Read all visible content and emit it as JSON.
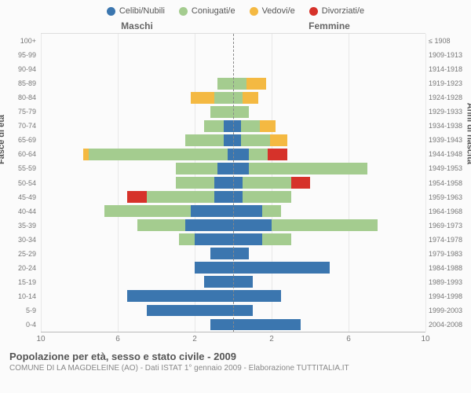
{
  "legend": [
    {
      "label": "Celibi/Nubili",
      "color": "#3b76af"
    },
    {
      "label": "Coniugati/e",
      "color": "#a4cc8f"
    },
    {
      "label": "Vedovi/e",
      "color": "#f4b942"
    },
    {
      "label": "Divorziati/e",
      "color": "#d6322a"
    }
  ],
  "gender_left": "Maschi",
  "gender_right": "Femmine",
  "y_title_left": "Fasce di età",
  "y_title_right": "Anni di nascita",
  "x_max": 10,
  "x_ticks_left": [
    10,
    6,
    2
  ],
  "x_ticks_right": [
    2,
    6,
    10
  ],
  "age_labels": [
    "100+",
    "95-99",
    "90-94",
    "85-89",
    "80-84",
    "75-79",
    "70-74",
    "65-69",
    "60-64",
    "55-59",
    "50-54",
    "45-49",
    "40-44",
    "35-39",
    "30-34",
    "25-29",
    "20-24",
    "15-19",
    "10-14",
    "5-9",
    "0-4"
  ],
  "birth_labels": [
    "≤ 1908",
    "1909-1913",
    "1914-1918",
    "1919-1923",
    "1924-1928",
    "1929-1933",
    "1934-1938",
    "1939-1943",
    "1944-1948",
    "1949-1953",
    "1954-1958",
    "1959-1963",
    "1964-1968",
    "1969-1973",
    "1974-1978",
    "1979-1983",
    "1984-1988",
    "1989-1993",
    "1994-1998",
    "1999-2003",
    "2004-2008"
  ],
  "rows": [
    {
      "m": [
        0,
        0,
        0,
        0
      ],
      "f": [
        0,
        0,
        0,
        0
      ]
    },
    {
      "m": [
        0,
        0,
        0,
        0
      ],
      "f": [
        0,
        0,
        0,
        0
      ]
    },
    {
      "m": [
        0,
        0,
        0,
        0
      ],
      "f": [
        0,
        0,
        0,
        0
      ]
    },
    {
      "m": [
        0,
        0.8,
        0,
        0
      ],
      "f": [
        0,
        0.7,
        1.0,
        0
      ]
    },
    {
      "m": [
        0,
        1.0,
        1.2,
        0
      ],
      "f": [
        0,
        0.5,
        0.8,
        0
      ]
    },
    {
      "m": [
        0,
        1.2,
        0,
        0
      ],
      "f": [
        0,
        0.8,
        0,
        0
      ]
    },
    {
      "m": [
        0.5,
        1.0,
        0,
        0
      ],
      "f": [
        0.4,
        1.0,
        0.8,
        0
      ]
    },
    {
      "m": [
        0.5,
        2.0,
        0,
        0
      ],
      "f": [
        0.4,
        1.5,
        0.9,
        0
      ]
    },
    {
      "m": [
        0.3,
        7.2,
        0.3,
        0
      ],
      "f": [
        0.8,
        1.0,
        0,
        1.0
      ]
    },
    {
      "m": [
        0.8,
        2.2,
        0,
        0
      ],
      "f": [
        0.8,
        6.2,
        0,
        0
      ]
    },
    {
      "m": [
        1.0,
        2.0,
        0,
        0
      ],
      "f": [
        0.5,
        2.5,
        0,
        1.0
      ]
    },
    {
      "m": [
        1.0,
        3.5,
        0,
        1.0
      ],
      "f": [
        0.5,
        2.5,
        0,
        0
      ]
    },
    {
      "m": [
        2.2,
        4.5,
        0,
        0
      ],
      "f": [
        1.5,
        1.0,
        0,
        0
      ]
    },
    {
      "m": [
        2.5,
        2.5,
        0,
        0
      ],
      "f": [
        2.0,
        5.5,
        0,
        0
      ]
    },
    {
      "m": [
        2.0,
        0.8,
        0,
        0
      ],
      "f": [
        1.5,
        1.5,
        0,
        0
      ]
    },
    {
      "m": [
        1.2,
        0,
        0,
        0
      ],
      "f": [
        0.8,
        0,
        0,
        0
      ]
    },
    {
      "m": [
        2.0,
        0,
        0,
        0
      ],
      "f": [
        5.0,
        0,
        0,
        0
      ]
    },
    {
      "m": [
        1.5,
        0,
        0,
        0
      ],
      "f": [
        1.0,
        0,
        0,
        0
      ]
    },
    {
      "m": [
        5.5,
        0,
        0,
        0
      ],
      "f": [
        2.5,
        0,
        0,
        0
      ]
    },
    {
      "m": [
        4.5,
        0,
        0,
        0
      ],
      "f": [
        1.0,
        0,
        0,
        0
      ]
    },
    {
      "m": [
        1.2,
        0,
        0,
        0
      ],
      "f": [
        3.5,
        0,
        0,
        0
      ]
    }
  ],
  "bar_gap": 0.18,
  "grid_color": "#e8e8e8",
  "title": "Popolazione per età, sesso e stato civile - 2009",
  "subtitle": "COMUNE DI LA MAGDELEINE (AO) - Dati ISTAT 1° gennaio 2009 - Elaborazione TUTTITALIA.IT"
}
